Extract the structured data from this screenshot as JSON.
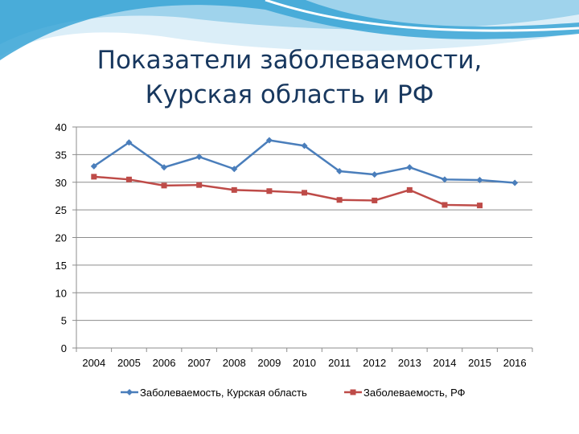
{
  "slide": {
    "title_line1": "Показатели заболеваемости,",
    "title_line2": "Курская область и РФ"
  },
  "colors": {
    "header_wave_light": "#dbeef8",
    "header_wave_mid": "#9fd3ec",
    "header_wave_dark": "#3aa5d6",
    "title": "#17375e",
    "grid": "#8c8c8c"
  },
  "chart_data": {
    "type": "line",
    "x": [
      "2004",
      "2005",
      "2006",
      "2007",
      "2008",
      "2009",
      "2010",
      "2011",
      "2012",
      "2013",
      "2014",
      "2015",
      "2016"
    ],
    "ylim": [
      0,
      40
    ],
    "yticks": [
      0,
      5,
      10,
      15,
      20,
      25,
      30,
      35,
      40
    ],
    "grid": true,
    "legend_position": "bottom",
    "series": [
      {
        "name": "Заболеваемость, Курская область",
        "color": "#4a7ebb",
        "marker": "diamond",
        "values": [
          32.9,
          37.2,
          32.7,
          34.6,
          32.4,
          37.6,
          36.6,
          32.0,
          31.4,
          32.7,
          30.5,
          30.4,
          29.9
        ]
      },
      {
        "name": "Заболеваемость, РФ",
        "color": "#be4b48",
        "marker": "square",
        "values": [
          31.0,
          30.5,
          29.4,
          29.5,
          28.6,
          28.4,
          28.1,
          26.8,
          26.7,
          28.6,
          25.9,
          25.8,
          null
        ]
      }
    ]
  }
}
